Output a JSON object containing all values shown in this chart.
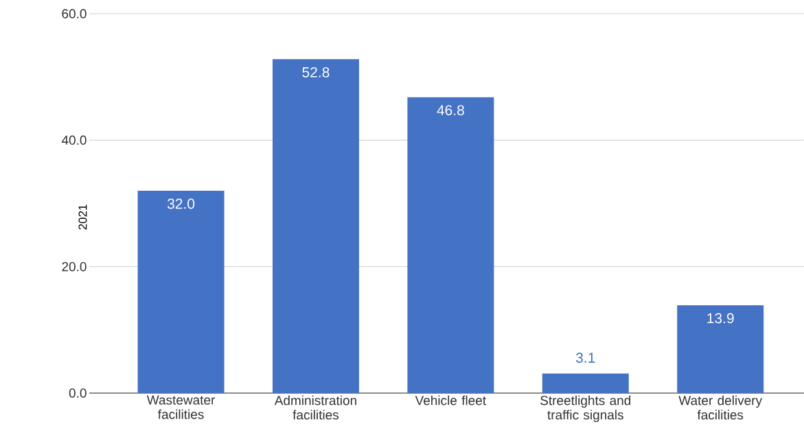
{
  "chart_data": {
    "type": "bar",
    "ylabel": "2021",
    "categories": [
      "Wastewater facilities",
      "Administration facilities",
      "Vehicle fleet",
      "Streetlights and traffic signals",
      "Water delivery facilities"
    ],
    "values": [
      32.0,
      52.8,
      46.8,
      3.1,
      13.9
    ],
    "value_labels": [
      "32.0",
      "52.8",
      "46.8",
      "3.1",
      "13.9"
    ],
    "color": "#4472c4",
    "ylim": [
      0,
      60
    ],
    "yticks": [
      {
        "value": 0,
        "label": "0.0"
      },
      {
        "value": 20,
        "label": "20.0"
      },
      {
        "value": 40,
        "label": "40.0"
      },
      {
        "value": 60,
        "label": "60.0"
      }
    ],
    "grid": "y"
  }
}
